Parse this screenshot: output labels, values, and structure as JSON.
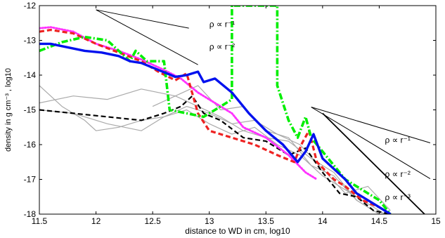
{
  "chart_data": {
    "type": "line",
    "title": "",
    "xlabel": "distance to WD in cm, log10",
    "ylabel": "density in g cm⁻³ , log10",
    "xlim": [
      11.5,
      15.0
    ],
    "ylim": [
      -18,
      -12
    ],
    "x_ticks": [
      11.5,
      12,
      12.5,
      13,
      13.5,
      14,
      14.5,
      15
    ],
    "x_tick_labels": [
      "11.5",
      "12",
      "12.5",
      "13",
      "13.5",
      "14",
      "14.5",
      "15"
    ],
    "y_ticks": [
      -18,
      -17,
      -16,
      -15,
      -14,
      -13,
      -12
    ],
    "y_tick_labels": [
      "-18",
      "-17",
      "-16",
      "-15",
      "-14",
      "-13",
      "-12"
    ],
    "grid": false,
    "series": [
      {
        "color": "#aaaaaa",
        "style": "solid",
        "width": 1.2,
        "x": [
          11.5,
          11.7,
          11.9,
          12.0,
          12.2,
          12.4,
          12.6,
          12.8,
          13.0,
          13.2,
          13.4,
          13.6,
          13.8,
          14.0,
          14.2,
          14.4,
          14.55
        ],
        "y": [
          -14.3,
          -14.9,
          -15.3,
          -15.6,
          -15.5,
          -15.3,
          -15.2,
          -15.0,
          -15.4,
          -15.7,
          -15.5,
          -16.0,
          -16.3,
          -16.9,
          -17.3,
          -17.7,
          -18.0
        ]
      },
      {
        "color": "#aaaaaa",
        "style": "solid",
        "width": 1.2,
        "x": [
          11.5,
          11.8,
          12.1,
          12.4,
          12.7,
          12.9,
          13.1,
          13.3,
          13.5,
          13.7,
          13.9,
          14.1,
          14.3,
          14.5
        ],
        "y": [
          -14.8,
          -14.6,
          -14.7,
          -14.4,
          -14.6,
          -14.3,
          -15.0,
          -14.9,
          -15.6,
          -15.8,
          -16.6,
          -16.9,
          -17.6,
          -18.0
        ]
      },
      {
        "color": "#aaaaaa",
        "style": "solid",
        "width": 1.2,
        "x": [
          11.5,
          11.8,
          12.1,
          12.4,
          12.6,
          12.8,
          13.0,
          13.2,
          13.4,
          13.6,
          13.8,
          14.0,
          14.2,
          14.4,
          14.6
        ],
        "y": [
          -15.0,
          -15.1,
          -15.4,
          -15.6,
          -15.2,
          -14.9,
          -15.1,
          -15.4,
          -15.3,
          -15.7,
          -16.0,
          -16.7,
          -17.4,
          -17.2,
          -17.9
        ]
      },
      {
        "color": "#aaaaaa",
        "style": "solid",
        "width": 1.2,
        "x": [
          12.5,
          12.7,
          12.9,
          13.1,
          13.3,
          13.5,
          13.7,
          13.9,
          14.1,
          14.3,
          14.5
        ],
        "y": [
          -14.9,
          -14.6,
          -14.9,
          -15.2,
          -15.6,
          -15.8,
          -15.9,
          -16.4,
          -16.8,
          -17.6,
          -18.0
        ]
      },
      {
        "color": "#000000",
        "style": "dashed",
        "width": 2.2,
        "x": [
          11.5,
          11.8,
          12.1,
          12.4,
          12.6,
          12.75,
          12.85,
          12.95,
          13.1,
          13.3,
          13.5,
          13.7,
          13.85,
          14.0,
          14.15,
          14.3,
          14.45,
          14.6
        ],
        "y": [
          -15.0,
          -15.1,
          -15.2,
          -15.3,
          -15.1,
          -14.9,
          -14.6,
          -15.1,
          -15.3,
          -15.8,
          -15.9,
          -16.3,
          -16.1,
          -16.8,
          -17.4,
          -17.5,
          -17.9,
          -18.0
        ]
      },
      {
        "color": "#ff33ff",
        "style": "dotted",
        "width": 3,
        "x": [
          11.5,
          11.6,
          11.8,
          12.0,
          12.2,
          12.4,
          12.6,
          12.75,
          12.9,
          13.1,
          13.2,
          13.3,
          13.5,
          13.7,
          13.85,
          13.95
        ],
        "y": [
          -12.65,
          -12.62,
          -12.75,
          -13.1,
          -13.3,
          -13.55,
          -13.85,
          -14.1,
          -14.5,
          -14.9,
          -15.1,
          -15.5,
          -15.8,
          -16.3,
          -16.8,
          -17.0
        ]
      },
      {
        "color": "#ee2222",
        "style": "dashed",
        "width": 3.2,
        "x": [
          11.5,
          11.6,
          11.8,
          12.0,
          12.2,
          12.4,
          12.55,
          12.7,
          12.8,
          12.9,
          13.0,
          13.2,
          13.4,
          13.6,
          13.75,
          13.82,
          13.88,
          13.95,
          14.1,
          14.2,
          14.35,
          14.5,
          14.6
        ],
        "y": [
          -12.75,
          -12.7,
          -12.8,
          -13.1,
          -13.35,
          -13.6,
          -13.9,
          -14.15,
          -13.95,
          -15.1,
          -15.6,
          -15.8,
          -16.0,
          -16.3,
          -16.5,
          -15.95,
          -15.6,
          -16.5,
          -17.0,
          -17.2,
          -17.6,
          -17.8,
          -18.0
        ]
      },
      {
        "color": "#00ee00",
        "style": "dashdot",
        "width": 3.6,
        "x": [
          11.5,
          11.7,
          11.9,
          12.1,
          12.3,
          12.35,
          12.45,
          12.6,
          12.65,
          12.8,
          12.95,
          13.1,
          13.2,
          13.2,
          13.2,
          13.6,
          13.6,
          13.7,
          13.78,
          13.85,
          13.9,
          14.0,
          14.1,
          14.2,
          14.35,
          14.5,
          14.6
        ],
        "y": [
          -13.3,
          -13.05,
          -12.9,
          -13.0,
          -13.6,
          -13.3,
          -13.6,
          -13.6,
          -15.0,
          -15.1,
          -15.2,
          -14.9,
          -14.7,
          -12.0,
          -12.0,
          -12.0,
          -14.3,
          -15.3,
          -15.8,
          -15.2,
          -15.8,
          -16.2,
          -16.6,
          -17.0,
          -17.3,
          -17.6,
          -18.0
        ]
      },
      {
        "color": "#0011ee",
        "style": "solid",
        "width": 3.4,
        "x": [
          11.5,
          11.6,
          11.75,
          11.9,
          12.05,
          12.2,
          12.3,
          12.4,
          12.55,
          12.7,
          12.8,
          12.9,
          12.95,
          13.05,
          13.2,
          13.35,
          13.5,
          13.65,
          13.78,
          13.85,
          13.92,
          14.0,
          14.1,
          14.2,
          14.3,
          14.4,
          14.5,
          14.6
        ],
        "y": [
          -13.1,
          -13.1,
          -13.2,
          -13.3,
          -13.35,
          -13.45,
          -13.6,
          -13.65,
          -13.85,
          -14.05,
          -14.0,
          -13.9,
          -14.2,
          -14.1,
          -14.5,
          -15.1,
          -15.6,
          -16.0,
          -16.5,
          -16.2,
          -15.7,
          -16.4,
          -16.7,
          -17.0,
          -17.4,
          -17.6,
          -17.8,
          -18.0
        ]
      },
      {
        "color": "#000000",
        "style": "solid",
        "width": 1.8,
        "x": [
          14.0,
          14.9
        ],
        "y": [
          -15.1,
          -18.0
        ]
      }
    ],
    "annotations": [
      {
        "text": "ρ ∝ r⁻¹"
      },
      {
        "text": "ρ ∝ r⁻²"
      },
      {
        "text": "ρ ∝ r⁻¹"
      },
      {
        "text": "ρ ∝ r⁻²"
      },
      {
        "text": "ρ ∝ r⁻³"
      }
    ],
    "reference_lines": [
      {
        "x": [
          12.0,
          12.82
        ],
        "y": [
          -12.12,
          -12.65
        ],
        "color": "#000000"
      },
      {
        "x": [
          12.0,
          12.9
        ],
        "y": [
          -12.12,
          -13.7
        ],
        "color": "#000000"
      },
      {
        "x": [
          13.9,
          14.95
        ],
        "y": [
          -14.92,
          -15.95
        ],
        "color": "#000000"
      },
      {
        "x": [
          13.9,
          14.95
        ],
        "y": [
          -14.92,
          -16.98
        ],
        "color": "#000000"
      }
    ]
  }
}
